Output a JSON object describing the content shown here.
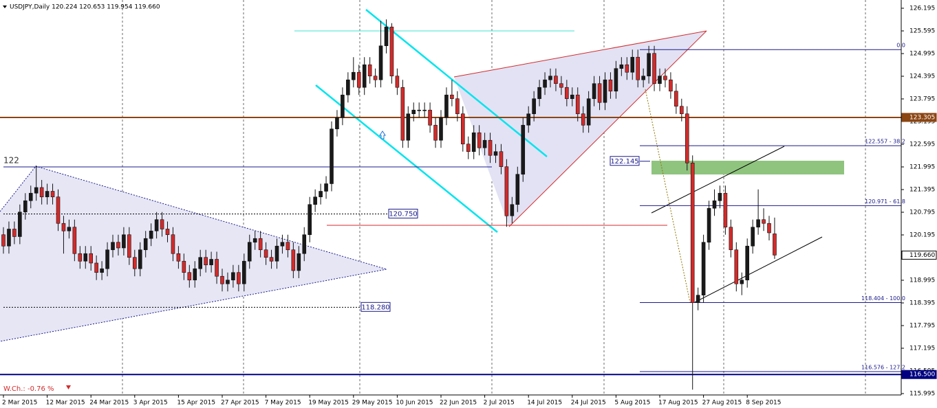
{
  "header": "USDJPY,Daily  120.224 120.653 119.954 119.660",
  "chart_data": {
    "type": "candlestick",
    "up_color": "#1a1a1a",
    "down_color": "#d42a2a",
    "x": [
      "2 Mar 2015",
      null,
      null,
      null,
      null,
      null,
      null,
      null,
      "12 Mar 2015",
      null,
      null,
      null,
      null,
      null,
      null,
      null,
      "24 Mar 2015",
      null,
      null,
      null,
      null,
      null,
      null,
      null,
      "3 Apr 2015",
      null,
      null,
      null,
      null,
      null,
      null,
      null,
      "15 Apr 2015",
      null,
      null,
      null,
      null,
      null,
      null,
      null,
      "27 Apr 2015",
      null,
      null,
      null,
      null,
      null,
      null,
      null,
      "7 May 2015",
      null,
      null,
      null,
      null,
      null,
      null,
      null,
      "19 May 2015",
      null,
      null,
      null,
      null,
      null,
      null,
      null,
      "29 May 2015",
      null,
      null,
      null,
      null,
      null,
      null,
      null,
      "10 Jun 2015",
      null,
      null,
      null,
      null,
      null,
      null,
      null,
      "22 Jun 2015",
      null,
      null,
      null,
      null,
      null,
      null,
      null,
      "2 Jul 2015",
      null,
      null,
      null,
      null,
      null,
      null,
      null,
      "14 Jul 2015",
      null,
      null,
      null,
      null,
      null,
      null,
      null,
      "24 Jul 2015",
      null,
      null,
      null,
      null,
      null,
      null,
      null,
      "5 Aug 2015",
      null,
      null,
      null,
      null,
      null,
      null,
      null,
      "17 Aug 2015",
      null,
      null,
      null,
      null,
      null,
      null,
      null,
      "27 Aug 2015",
      null,
      null,
      null,
      null,
      null,
      null,
      null,
      "8 Sep 2015",
      null,
      null,
      null,
      null,
      null
    ],
    "open": [
      120.2,
      119.9,
      120.35,
      120.15,
      120.8,
      121.1,
      121.3,
      121.45,
      121.2,
      121.35,
      121.2,
      120.5,
      120.3,
      120.4,
      119.7,
      119.5,
      119.7,
      119.45,
      119.2,
      119.3,
      119.8,
      120.0,
      119.85,
      120.2,
      119.6,
      119.3,
      119.8,
      120.1,
      120.3,
      120.6,
      120.35,
      120.2,
      119.7,
      119.5,
      119.2,
      119.0,
      119.3,
      119.6,
      119.4,
      119.55,
      119.1,
      118.9,
      119.0,
      119.2,
      118.9,
      119.5,
      120.0,
      120.1,
      119.8,
      119.6,
      119.5,
      119.9,
      120.0,
      119.8,
      119.25,
      119.7,
      120.2,
      121.0,
      121.2,
      121.35,
      121.55,
      123.0,
      123.3,
      123.9,
      124.3,
      124.5,
      124.1,
      124.7,
      124.4,
      124.3,
      125.2,
      125.7,
      124.4,
      124.1,
      122.7,
      123.4,
      123.5,
      123.5,
      123.5,
      123.1,
      122.7,
      123.3,
      123.9,
      123.8,
      123.4,
      122.6,
      122.4,
      122.9,
      122.5,
      122.7,
      122.3,
      122.4,
      122.0,
      120.7,
      121.0,
      121.8,
      123.1,
      123.4,
      123.8,
      124.1,
      124.3,
      124.4,
      124.2,
      124.1,
      123.8,
      123.9,
      123.4,
      123.1,
      123.8,
      124.2,
      123.7,
      124.3,
      124.0,
      124.6,
      124.7,
      124.5,
      124.9,
      124.3,
      124.4,
      125.0,
      124.2,
      124.4,
      124.3,
      124.0,
      123.6,
      123.4,
      122.1,
      118.4,
      118.6,
      120.0,
      120.9,
      121.1,
      121.3,
      120.4,
      119.8,
      118.9,
      119.0,
      119.9,
      120.4,
      120.6,
      120.5,
      120.224
    ],
    "high": [
      120.4,
      120.55,
      120.55,
      121.0,
      121.3,
      121.5,
      122.03,
      121.65,
      121.55,
      121.55,
      121.4,
      120.7,
      120.6,
      120.6,
      119.9,
      119.9,
      119.9,
      119.65,
      119.5,
      120.0,
      120.2,
      120.2,
      120.4,
      120.4,
      119.8,
      120.0,
      120.3,
      120.5,
      120.8,
      120.8,
      120.55,
      120.4,
      119.9,
      119.7,
      119.4,
      119.5,
      119.8,
      119.8,
      119.75,
      119.75,
      119.3,
      119.2,
      119.4,
      119.4,
      119.7,
      120.2,
      120.3,
      120.3,
      120.0,
      119.8,
      120.1,
      120.2,
      120.2,
      120.0,
      119.9,
      120.4,
      121.2,
      121.4,
      121.55,
      121.75,
      123.2,
      123.5,
      124.1,
      124.5,
      124.9,
      124.7,
      124.9,
      124.9,
      124.6,
      125.86,
      125.9,
      125.8,
      124.6,
      124.3,
      123.6,
      123.7,
      123.7,
      123.7,
      123.7,
      123.3,
      123.5,
      124.1,
      124.3,
      124.0,
      123.6,
      122.8,
      123.1,
      123.1,
      122.9,
      122.9,
      122.6,
      122.6,
      122.2,
      121.2,
      122.0,
      123.3,
      123.6,
      124.0,
      124.3,
      124.5,
      124.6,
      124.6,
      124.4,
      124.3,
      124.1,
      124.1,
      123.6,
      124.0,
      124.4,
      124.4,
      124.5,
      124.5,
      124.8,
      124.9,
      124.9,
      125.1,
      125.1,
      124.6,
      125.2,
      125.2,
      124.6,
      124.6,
      124.5,
      124.2,
      123.8,
      123.6,
      122.3,
      118.8,
      120.2,
      121.1,
      121.4,
      121.5,
      121.5,
      120.6,
      120.0,
      119.2,
      120.1,
      120.6,
      121.4,
      120.9,
      120.7,
      120.653
    ],
    "low": [
      119.7,
      119.7,
      119.95,
      119.95,
      120.6,
      120.9,
      121.1,
      121.0,
      121.0,
      121.0,
      120.3,
      119.7,
      120.1,
      119.5,
      119.3,
      119.3,
      119.25,
      119.0,
      119.0,
      119.1,
      119.6,
      119.65,
      119.65,
      119.4,
      119.1,
      119.1,
      119.6,
      119.9,
      120.1,
      120.15,
      120.0,
      119.5,
      119.3,
      119.0,
      118.8,
      118.8,
      119.1,
      119.2,
      119.2,
      118.9,
      118.7,
      118.7,
      118.8,
      118.7,
      118.7,
      119.3,
      119.8,
      119.6,
      119.4,
      119.3,
      119.3,
      119.7,
      119.6,
      119.05,
      119.05,
      119.5,
      120.0,
      120.8,
      121.0,
      121.15,
      121.35,
      122.8,
      123.1,
      123.7,
      124.1,
      123.9,
      123.9,
      124.2,
      124.1,
      124.1,
      125.0,
      124.2,
      123.9,
      122.5,
      122.5,
      123.2,
      123.3,
      123.3,
      122.9,
      122.5,
      122.5,
      123.1,
      123.6,
      123.2,
      122.4,
      122.2,
      122.2,
      122.3,
      122.3,
      122.1,
      122.1,
      121.8,
      120.41,
      120.5,
      120.8,
      121.6,
      122.9,
      123.2,
      123.6,
      123.9,
      124.1,
      124.0,
      123.9,
      123.6,
      123.6,
      123.2,
      122.9,
      122.9,
      123.6,
      123.5,
      123.5,
      123.8,
      123.8,
      124.4,
      124.3,
      124.3,
      124.1,
      124.1,
      124.2,
      124.0,
      124.0,
      124.1,
      123.8,
      123.4,
      123.2,
      121.9,
      116.1,
      118.2,
      118.4,
      119.8,
      120.7,
      120.9,
      120.2,
      119.6,
      118.7,
      118.6,
      118.8,
      119.7,
      120.2,
      120.3,
      120.05,
      119.56
    ],
    "close": [
      119.9,
      120.35,
      120.15,
      120.8,
      121.1,
      121.3,
      121.45,
      121.2,
      121.35,
      121.2,
      120.5,
      120.3,
      120.4,
      119.7,
      119.5,
      119.7,
      119.45,
      119.2,
      119.3,
      119.8,
      120.0,
      119.85,
      120.2,
      119.6,
      119.3,
      119.8,
      120.1,
      120.3,
      120.6,
      120.35,
      120.2,
      119.7,
      119.5,
      119.2,
      119.0,
      119.3,
      119.6,
      119.4,
      119.55,
      119.1,
      118.9,
      119.0,
      119.2,
      118.9,
      119.5,
      120.0,
      120.1,
      119.8,
      119.6,
      119.5,
      119.9,
      120.0,
      119.8,
      119.25,
      119.7,
      120.2,
      121.0,
      121.2,
      121.35,
      121.55,
      123.0,
      123.3,
      123.9,
      124.3,
      124.5,
      124.1,
      124.7,
      124.4,
      124.3,
      125.2,
      125.7,
      124.4,
      124.1,
      122.7,
      123.4,
      123.5,
      123.5,
      123.5,
      123.1,
      122.7,
      123.3,
      123.9,
      123.8,
      123.4,
      122.6,
      122.4,
      122.9,
      122.5,
      122.7,
      122.3,
      122.4,
      122.0,
      120.7,
      121.0,
      121.8,
      123.1,
      123.4,
      123.8,
      124.1,
      124.3,
      124.4,
      124.2,
      124.1,
      123.8,
      123.9,
      123.4,
      123.1,
      123.8,
      124.2,
      123.7,
      124.3,
      124.0,
      124.6,
      124.7,
      124.5,
      124.9,
      124.3,
      124.4,
      125.0,
      124.2,
      124.4,
      124.3,
      124.0,
      123.6,
      123.4,
      122.1,
      118.4,
      118.6,
      120.0,
      120.9,
      121.1,
      121.3,
      120.4,
      119.8,
      118.9,
      119.0,
      119.9,
      120.4,
      120.6,
      120.5,
      120.25,
      119.66
    ],
    "ylim": [
      115.995,
      126.195
    ],
    "yticks": [
      126.195,
      125.595,
      124.995,
      124.395,
      123.795,
      123.195,
      122.595,
      121.995,
      121.395,
      120.795,
      120.195,
      119.595,
      118.995,
      118.395,
      117.795,
      117.195,
      116.595,
      115.995
    ],
    "price_labels": [
      {
        "value": 123.305,
        "label": "123.305",
        "color": "#8b4513",
        "line": true
      },
      {
        "value": 119.66,
        "label": "119.660",
        "color": "#ffffff",
        "line": false
      },
      {
        "value": 116.5,
        "label": "116.500",
        "color": "#000080",
        "line": true
      }
    ],
    "fib_levels": [
      {
        "value": 125.1,
        "label": "0.0"
      },
      {
        "value": 122.557,
        "label": "122.557 - 38.2"
      },
      {
        "value": 120.971,
        "label": "120.971 - 61.8"
      },
      {
        "value": 118.404,
        "label": "118.404 - 100.0"
      },
      {
        "value": 116.576,
        "label": "116.576 - 127.2"
      }
    ],
    "boxed_levels": [
      {
        "value": 120.75,
        "label": "120.750"
      },
      {
        "value": 118.28,
        "label": "118.280"
      },
      {
        "value": 122.145,
        "label": "122.145"
      }
    ],
    "level_122": {
      "value": 121.995,
      "label": "122"
    },
    "weekly_change": "W.Ch.: -0.76 %"
  }
}
